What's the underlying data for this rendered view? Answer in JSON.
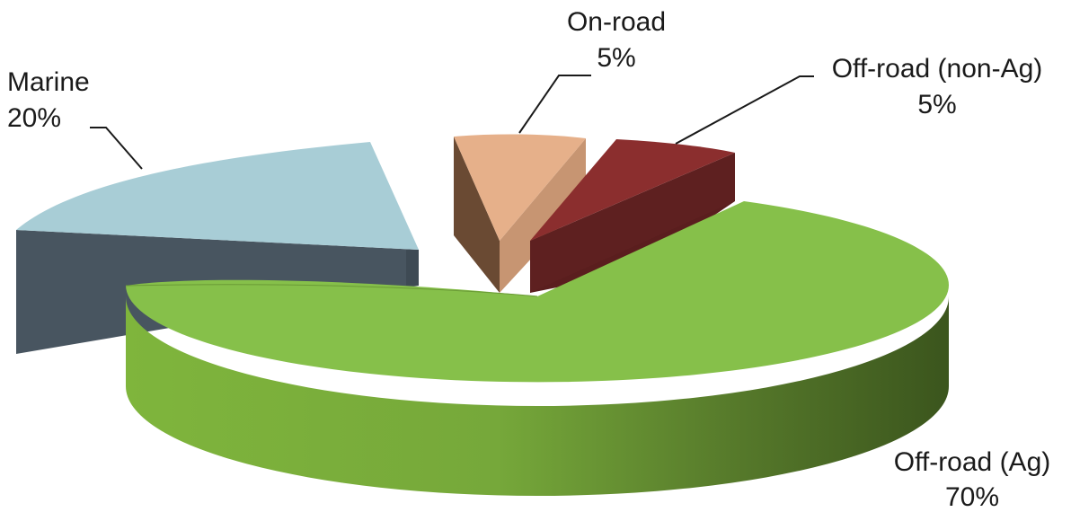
{
  "chart_data": {
    "type": "pie",
    "style": "3d-exploded",
    "slices": [
      {
        "label": "Off-road (Ag)",
        "value": 70,
        "value_label": "70%",
        "color": "#8bc34a"
      },
      {
        "label": "Marine",
        "value": 20,
        "value_label": "20%",
        "color": "#a8cdd6"
      },
      {
        "label": "On-road",
        "value": 5,
        "value_label": "5%",
        "color": "#e6b08a"
      },
      {
        "label": "Off-road (non-Ag)",
        "value": 5,
        "value_label": "5%",
        "color": "#8b2e2e"
      }
    ]
  }
}
